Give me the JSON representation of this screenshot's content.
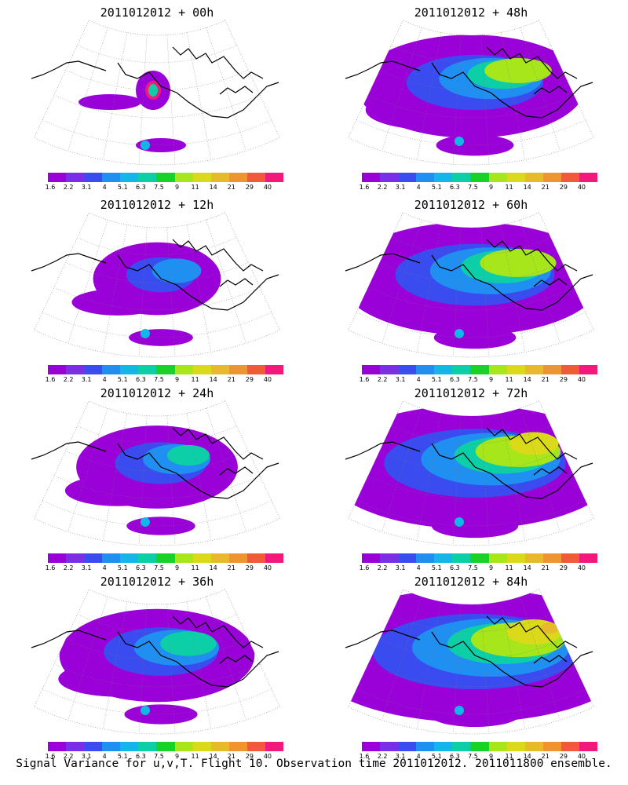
{
  "panels": [
    {
      "title": "2011012012 + 00h",
      "lead_hours": 0
    },
    {
      "title": "2011012012 + 48h",
      "lead_hours": 48
    },
    {
      "title": "2011012012 + 12h",
      "lead_hours": 12
    },
    {
      "title": "2011012012 + 60h",
      "lead_hours": 60
    },
    {
      "title": "2011012012 + 24h",
      "lead_hours": 24
    },
    {
      "title": "2011012012 + 72h",
      "lead_hours": 72
    },
    {
      "title": "2011012012 + 36h",
      "lead_hours": 36
    },
    {
      "title": "2011012012 + 84h",
      "lead_hours": 84
    }
  ],
  "colorbar": {
    "ticks": [
      "1.6",
      "2.2",
      "3.1",
      "4",
      "5.1",
      "6.3",
      "7.5",
      "9",
      "11",
      "14",
      "21",
      "29",
      "40"
    ],
    "colors": [
      "#9a00d8",
      "#7a2ee6",
      "#3a4cf0",
      "#1f8ff2",
      "#12b6e8",
      "#0ccfa8",
      "#18d228",
      "#a6e61a",
      "#dada1a",
      "#e6ba2a",
      "#ee9430",
      "#f05a3a",
      "#f2187c"
    ]
  },
  "footer": "Signal Variance for u,v,T. Flight 10. Observation time 2011012012. 2011011800 ensemble."
}
